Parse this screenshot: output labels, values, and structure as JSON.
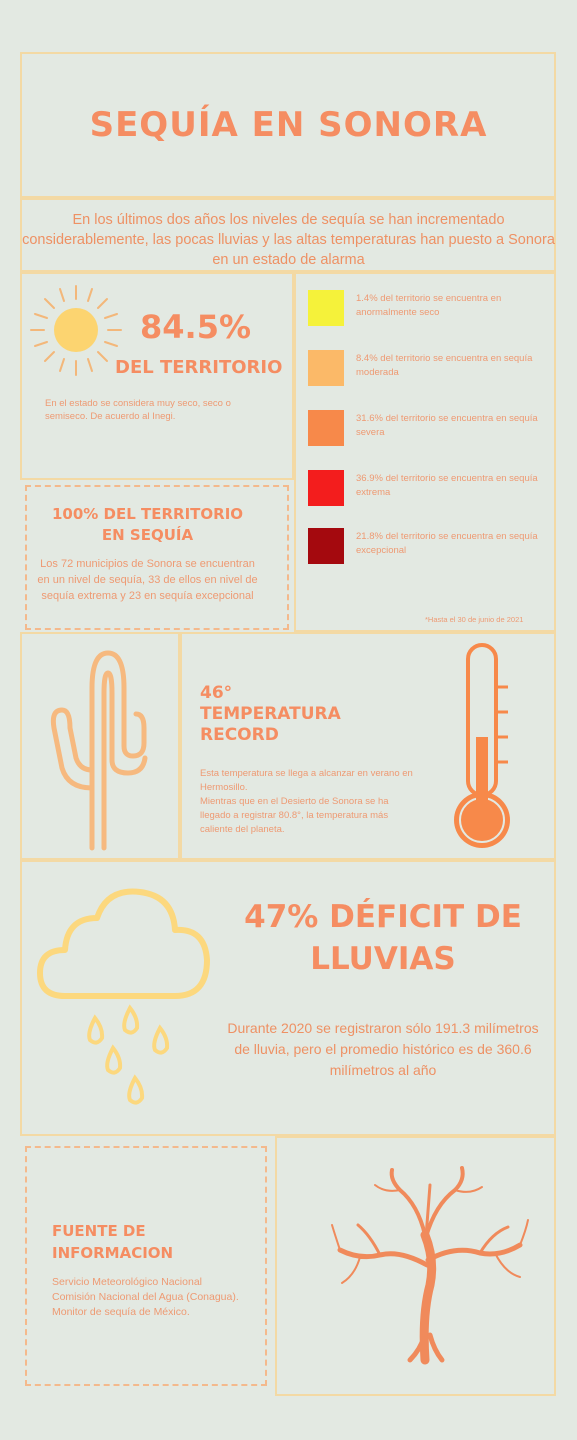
{
  "header": {
    "title": "SEQUÍA EN SONORA"
  },
  "intro": {
    "text": "En los últimos dos años los niveles de sequía se han incrementado considerablemente, las pocas lluvias y las altas temperaturas han puesto a Sonora en un estado de alarma"
  },
  "territory": {
    "percent": "84.5%",
    "label": "DEL TERRITORIO",
    "note": "En el estado se considera muy seco, seco o semiseco. De acuerdo al Inegi."
  },
  "legend": {
    "items": [
      {
        "color": "#f5f23a",
        "text": "1.4% del territorio se encuentra en anormalmente seco"
      },
      {
        "color": "#fbb968",
        "text": "8.4% del territorio se encuentra en sequía moderada"
      },
      {
        "color": "#f7894a",
        "text": "31.6% del territorio se encuentra en sequía severa"
      },
      {
        "color": "#f31d1d",
        "text": "36.9% del territorio se encuentra en sequía extrema"
      },
      {
        "color": "#a4090e",
        "text": "21.8% del territorio se encuentra en sequía excepcional"
      }
    ],
    "footnote": "*Hasta el 30 de junio de 2021"
  },
  "municipalities": {
    "title_line1": "100% DEL TERRITORIO",
    "title_line2": "EN SEQUÍA",
    "body": "Los 72 municipios de Sonora se encuentran en un nivel de sequía, 33 de ellos en nivel de sequía extrema y 23 en sequía excepcional"
  },
  "temperature": {
    "line1": "46°",
    "line2": "TEMPERATURA",
    "line3": "RECORD",
    "body1": "Esta temperatura se llega a alcanzar en verano en Hermosillo.",
    "body2": "Mientras que en el Desierto de Sonora se ha llegado a registrar 80.8°, la temperatura más caliente del planeta."
  },
  "rain": {
    "title_line1": "47% DÉFICIT DE",
    "title_line2": "LLUVIAS",
    "body": "Durante 2020 se registraron sólo 191.3 milímetros de lluvia, pero el promedio histórico es de 360.6 milímetros al año"
  },
  "sources": {
    "title_line1": "FUENTE DE",
    "title_line2": "INFORMACION",
    "items": [
      "Servicio Meteorológico Nacional",
      "Comisión Nacional del Agua (Conagua).",
      "Monitor de sequía de México."
    ]
  },
  "colors": {
    "accent": "#f58d62",
    "border": "#f3d9a4",
    "background": "#e3e9e2"
  },
  "icons": [
    "sun-icon",
    "cactus-icon",
    "thermometer-icon",
    "cloud-rain-icon",
    "dry-tree-icon"
  ]
}
